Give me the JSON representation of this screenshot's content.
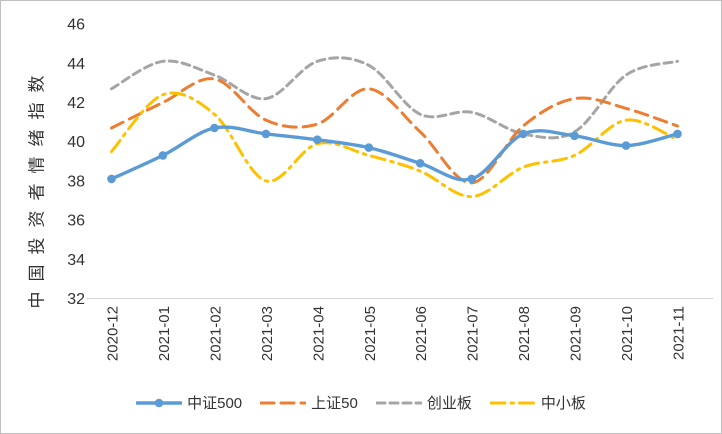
{
  "chart_data": {
    "type": "line",
    "title": "",
    "ylabel": "中国投资者情绪指数",
    "xlabel": "",
    "categories": [
      "2020-12",
      "2021-01",
      "2021-02",
      "2021-03",
      "2021-04",
      "2021-05",
      "2021-06",
      "2021-07",
      "2021-08",
      "2021-09",
      "2021-10",
      "2021-11"
    ],
    "ylim": [
      32,
      46
    ],
    "ytick_step": 2,
    "yticks": [
      32,
      34,
      36,
      38,
      40,
      42,
      44,
      46
    ],
    "grid": false,
    "legend_position": "bottom",
    "series": [
      {
        "name": "中证500",
        "color": "#5B9BD5",
        "style": "solid",
        "marker": "circle",
        "values": [
          38.1,
          39.3,
          40.7,
          40.4,
          40.1,
          39.7,
          38.9,
          38.1,
          40.4,
          40.3,
          39.8,
          40.4
        ]
      },
      {
        "name": "上证50",
        "color": "#ED7D31",
        "style": "dashed",
        "marker": "none",
        "values": [
          40.7,
          42.0,
          43.2,
          41.1,
          40.9,
          42.7,
          40.5,
          37.9,
          40.8,
          42.2,
          41.7,
          40.8
        ]
      },
      {
        "name": "创业板",
        "color": "#A5A5A5",
        "style": "dashed-short",
        "marker": "none",
        "values": [
          42.7,
          44.1,
          43.4,
          42.2,
          44.1,
          43.9,
          41.4,
          41.5,
          40.4,
          40.5,
          43.4,
          44.1
        ]
      },
      {
        "name": "中小板",
        "color": "#FFC000",
        "style": "dash-dot",
        "marker": "none",
        "values": [
          39.5,
          42.4,
          41.4,
          38.0,
          39.9,
          39.3,
          38.5,
          37.2,
          38.7,
          39.3,
          41.1,
          40.1
        ]
      }
    ]
  },
  "colors": {
    "background": "#FFFFFF",
    "frame_border": "#BFBFBF",
    "axis_line": "#D9D9D9",
    "tick_text": "#333333"
  }
}
